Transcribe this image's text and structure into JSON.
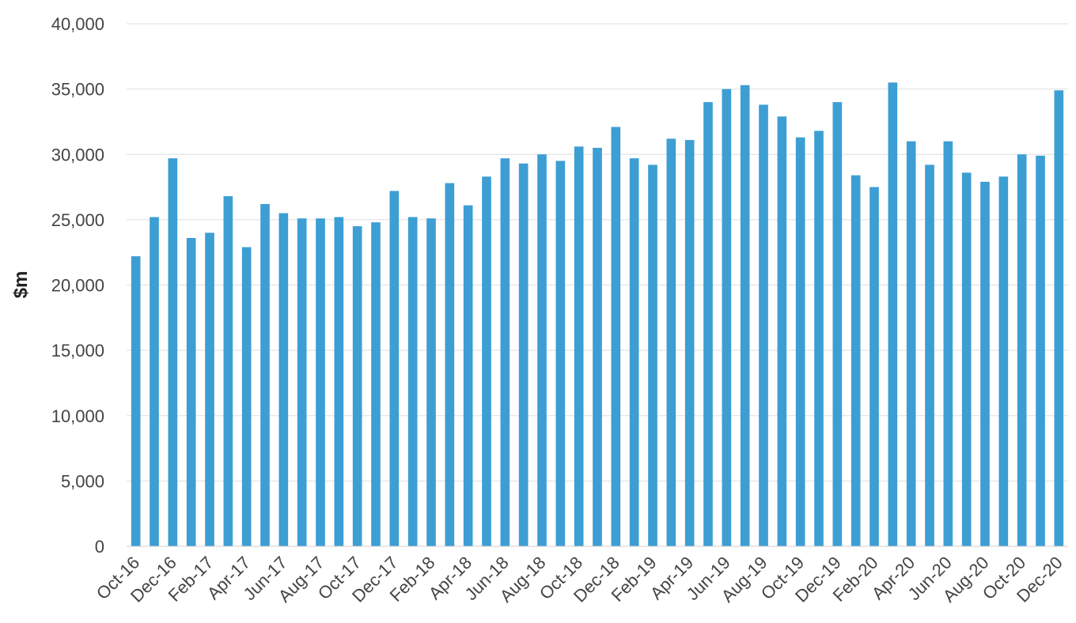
{
  "chart_data": {
    "type": "bar",
    "title": "",
    "xlabel": "",
    "ylabel": "$m",
    "ylim": [
      0,
      40000
    ],
    "y_ticks": [
      0,
      5000,
      10000,
      15000,
      20000,
      25000,
      30000,
      35000,
      40000
    ],
    "y_tick_labels": [
      "0",
      "5,000",
      "10,000",
      "15,000",
      "20,000",
      "25,000",
      "30,000",
      "35,000",
      "40,000"
    ],
    "grid": true,
    "legend": "none",
    "bar_color": "#3d9ed4",
    "categories": [
      "Oct-16",
      "Nov-16",
      "Dec-16",
      "Jan-17",
      "Feb-17",
      "Mar-17",
      "Apr-17",
      "May-17",
      "Jun-17",
      "Jul-17",
      "Aug-17",
      "Sep-17",
      "Oct-17",
      "Nov-17",
      "Dec-17",
      "Jan-18",
      "Feb-18",
      "Mar-18",
      "Apr-18",
      "May-18",
      "Jun-18",
      "Jul-18",
      "Aug-18",
      "Sep-18",
      "Oct-18",
      "Nov-18",
      "Dec-18",
      "Jan-19",
      "Feb-19",
      "Mar-19",
      "Apr-19",
      "May-19",
      "Jun-19",
      "Jul-19",
      "Aug-19",
      "Sep-19",
      "Oct-19",
      "Nov-19",
      "Dec-19",
      "Jan-20",
      "Feb-20",
      "Mar-20",
      "Apr-20",
      "May-20",
      "Jun-20",
      "Jul-20",
      "Aug-20",
      "Sep-20",
      "Oct-20",
      "Nov-20",
      "Dec-20"
    ],
    "x_tick_labels": [
      "Oct-16",
      "Dec-16",
      "Feb-17",
      "Apr-17",
      "Jun-17",
      "Aug-17",
      "Oct-17",
      "Dec-17",
      "Feb-18",
      "Apr-18",
      "Jun-18",
      "Aug-18",
      "Oct-18",
      "Dec-18",
      "Feb-19",
      "Apr-19",
      "Jun-19",
      "Aug-19",
      "Oct-19",
      "Dec-19",
      "Feb-20",
      "Apr-20",
      "Jun-20",
      "Aug-20",
      "Oct-20",
      "Dec-20"
    ],
    "values": [
      22200,
      25200,
      29700,
      23600,
      24000,
      26800,
      22900,
      26200,
      25500,
      25100,
      25100,
      25200,
      24500,
      24800,
      27200,
      25200,
      25100,
      27800,
      26100,
      28300,
      29700,
      29300,
      30000,
      29500,
      30600,
      30500,
      32100,
      29700,
      29200,
      31200,
      31100,
      34000,
      35000,
      35300,
      33800,
      32900,
      31300,
      31800,
      34000,
      28400,
      27500,
      35500,
      31000,
      29200,
      31000,
      28600,
      27900,
      28300,
      30000,
      29900,
      34900
    ]
  }
}
